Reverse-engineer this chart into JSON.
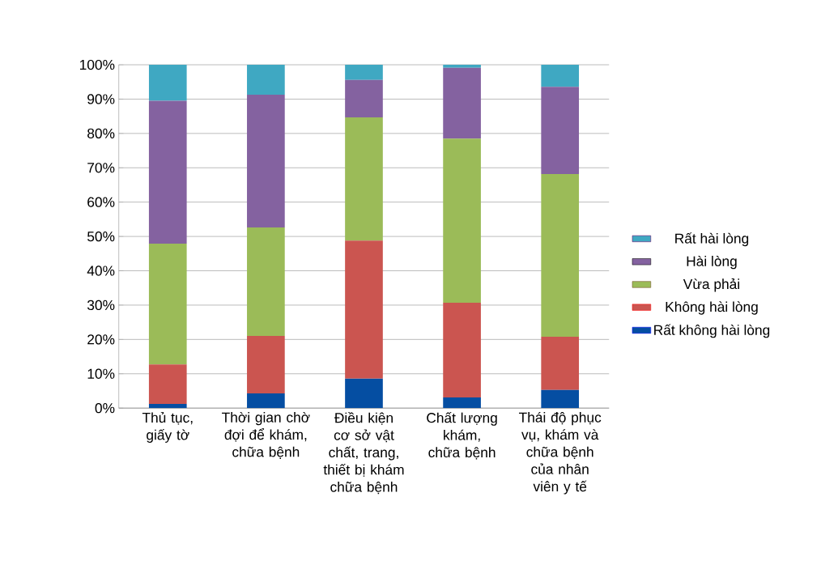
{
  "chart_data": {
    "type": "bar",
    "stacked": true,
    "categories": [
      "Thủ tục, giấy tờ",
      "Thời gian chờ đợi để khám, chữa bệnh",
      "Điều kiện cơ sở vật chất, trang, thiết bị khám chữa bệnh",
      "Chất lượng khám, chữa bệnh",
      "Thái độ phục vụ, khám và chữa bệnh của nhân viên y tế"
    ],
    "series": [
      {
        "name": "Rất không hài lòng",
        "color": "#054ea2",
        "values": [
          1.2,
          4.3,
          8.6,
          3.1,
          5.3
        ]
      },
      {
        "name": "Không hài lòng",
        "color": "#cb5550",
        "values": [
          11.5,
          16.7,
          40.2,
          27.6,
          15.5
        ]
      },
      {
        "name": "Vừa phải",
        "color": "#9bbb58",
        "values": [
          35.2,
          31.6,
          35.9,
          47.8,
          47.4
        ]
      },
      {
        "name": "Hài lòng",
        "color": "#8462a0",
        "values": [
          41.6,
          38.7,
          10.9,
          20.6,
          25.4
        ]
      },
      {
        "name": "Rất hài lòng",
        "color": "#3fa8c2",
        "values": [
          10.5,
          8.7,
          4.4,
          0.9,
          6.4
        ]
      }
    ],
    "ylim": [
      0,
      100
    ],
    "yticks": [
      {
        "value": 0,
        "label": "0%"
      },
      {
        "value": 10,
        "label": "10%"
      },
      {
        "value": 20,
        "label": "20%"
      },
      {
        "value": 30,
        "label": "30%"
      },
      {
        "value": 40,
        "label": "40%"
      },
      {
        "value": 50,
        "label": "50%"
      },
      {
        "value": 60,
        "label": "60%"
      },
      {
        "value": 70,
        "label": "70%"
      },
      {
        "value": 80,
        "label": "80%"
      },
      {
        "value": 90,
        "label": "90%"
      },
      {
        "value": 100,
        "label": "100%"
      }
    ],
    "grid": "y",
    "legend": "right"
  }
}
